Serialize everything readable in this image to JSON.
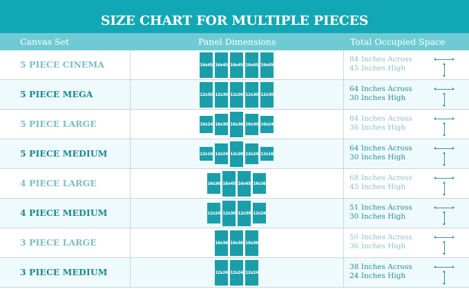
{
  "title": "SIZE CHART FOR MULTIPLE PIECES",
  "headers": {
    "canvas_set": "Canvas Set",
    "panel_dimensions": "Panel Dimensions",
    "total_space": "Total Occupied Space"
  },
  "colors": {
    "title_bar": "#12a7b5",
    "header_bar": "#6fcbd3",
    "panel": "#1a9ea9",
    "alt_row": "#effafc"
  },
  "rows": [
    {
      "name": "5 PIECE CINEMA",
      "panels": [
        "16x45",
        "16x45",
        "16x45",
        "16x45",
        "16x45"
      ],
      "across": "84 Inches Across",
      "high": "45 Inches High"
    },
    {
      "name": "5 PIECE MEGA",
      "panels": [
        "12x30",
        "12x30",
        "12x30",
        "12x30",
        "12x30"
      ],
      "across": "64 Inches Across",
      "high": "30 Inches High"
    },
    {
      "name": "5 PIECE LARGE",
      "panels": [
        "16x24",
        "16x30",
        "16x36",
        "16x30",
        "16x24"
      ],
      "across": "84 Inches Across",
      "high": "36 Inches High"
    },
    {
      "name": "5 PIECE MEDIUM",
      "panels": [
        "12x16",
        "12x24",
        "12x30",
        "12x24",
        "12x16"
      ],
      "across": "64 Inches Across",
      "high": "30 Inches High"
    },
    {
      "name": "4 PIECE LARGE",
      "panels": [
        "16x36",
        "16x45",
        "16x45",
        "16x36"
      ],
      "across": "68 Inches Across",
      "high": "45 Inches High"
    },
    {
      "name": "4 PIECE MEDIUM",
      "panels": [
        "12x24",
        "12x30",
        "12x30",
        "12x24"
      ],
      "across": "51 Inches Across",
      "high": "30 Inches High"
    },
    {
      "name": "3 PIECE LARGE",
      "panels": [
        "16x36",
        "16x36",
        "16x36"
      ],
      "across": "50 Inches Across",
      "high": "36 Inches High"
    },
    {
      "name": "3 PIECE MEDIUM",
      "panels": [
        "12x24",
        "12x24",
        "12x24"
      ],
      "across": "38 Inches Across",
      "high": "24 Inches High"
    }
  ]
}
